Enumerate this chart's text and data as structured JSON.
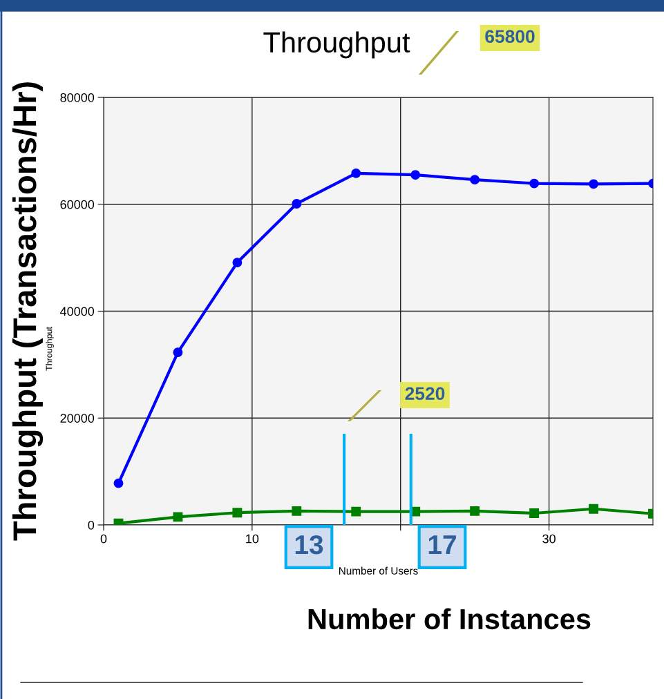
{
  "chart_data": {
    "type": "line",
    "title": "Throughput",
    "xlabel": "Number of Users",
    "ylabel": "Throughput (Transactions/Hr)",
    "x": [
      1,
      5,
      9,
      13,
      17,
      21,
      25,
      29,
      33,
      37
    ],
    "series": [
      {
        "color": "#0000ff",
        "marker": "circle",
        "values": [
          7800,
          32300,
          49100,
          60100,
          65800,
          65500,
          64600,
          63900,
          63800,
          63900
        ]
      },
      {
        "color": "#008000",
        "marker": "square",
        "values": [
          300,
          1500,
          2300,
          2600,
          2500,
          2500,
          2600,
          2200,
          3000,
          2100
        ]
      }
    ],
    "xlim": [
      0,
      37
    ],
    "xticks": [
      0,
      10,
      {
        "value": 20,
        "label": null
      },
      30
    ],
    "ylim": [
      0,
      80000
    ],
    "yticks": [
      0,
      20000,
      40000,
      60000,
      80000
    ],
    "grid": true,
    "line_style": "solid",
    "ref_lines": [
      {
        "axis": "x",
        "value": 16.2,
        "color": "#00b0f0"
      },
      {
        "axis": "x",
        "value": 20.7,
        "color": "#00b0f0"
      }
    ],
    "annotations": [
      "65800",
      "2520",
      "13",
      "17",
      "Number of Instances",
      "Throughput"
    ]
  }
}
